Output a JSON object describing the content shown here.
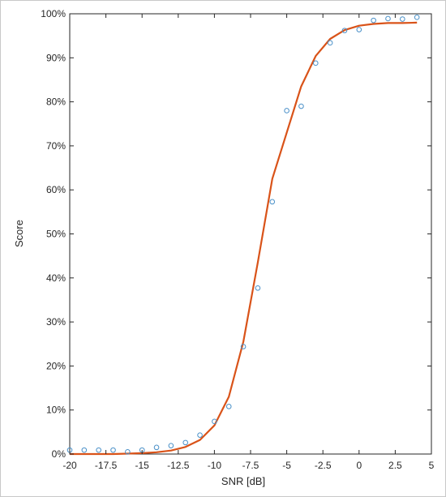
{
  "chart_data": {
    "type": "scatter",
    "title": "",
    "xlabel": "SNR [dB]",
    "ylabel": "Score",
    "xlim": [
      -20,
      5
    ],
    "ylim": [
      0,
      100
    ],
    "grid": false,
    "legend": "none",
    "x_ticks": [
      -20,
      -17.5,
      -15,
      -12.5,
      -10,
      -7.5,
      -5,
      -2.5,
      0,
      2.5,
      5
    ],
    "x_tick_labels": [
      "-20",
      "-17.5",
      "-15",
      "-12.5",
      "-10",
      "-7.5",
      "-5",
      "-2.5",
      "0",
      "2.5",
      "5"
    ],
    "y_ticks": [
      0,
      10,
      20,
      30,
      40,
      50,
      60,
      70,
      80,
      90,
      100
    ],
    "y_tick_labels": [
      "0%",
      "10%",
      "20%",
      "30%",
      "40%",
      "50%",
      "60%",
      "70%",
      "80%",
      "90%",
      "100%"
    ],
    "colors": {
      "points": "#4a90c8",
      "fit": "#d95319",
      "axis": "#262626"
    },
    "series": [
      {
        "kind": "points",
        "x": [
          -20,
          -19,
          -18,
          -17,
          -16,
          -15,
          -14,
          -13,
          -12,
          -11,
          -10,
          -9,
          -8,
          -7,
          -6,
          -5,
          -4,
          -3,
          -2,
          -1,
          0,
          1,
          2,
          3,
          4
        ],
        "y": [
          0.9,
          0.9,
          0.9,
          0.9,
          0.5,
          0.9,
          1.5,
          1.9,
          2.6,
          4.3,
          7.4,
          10.8,
          24.4,
          37.7,
          57.3,
          78.0,
          79.0,
          88.8,
          93.4,
          96.2,
          96.4,
          98.5,
          98.9,
          98.8,
          99.2
        ]
      },
      {
        "kind": "fit",
        "x": [
          -20,
          -19,
          -18,
          -17,
          -16,
          -15,
          -14,
          -13,
          -12,
          -11,
          -10,
          -9,
          -8,
          -7,
          -6,
          -5,
          -4,
          -3,
          -2,
          -1,
          0,
          1,
          2,
          3,
          4
        ],
        "y": [
          0,
          0,
          0,
          0,
          0.1,
          0.2,
          0.4,
          0.8,
          1.6,
          3.2,
          6.5,
          13.0,
          25.5,
          43.5,
          62.5,
          73.0,
          83.5,
          90.4,
          94.3,
          96.3,
          97.3,
          97.7,
          97.9,
          97.9,
          98.0
        ]
      }
    ]
  }
}
